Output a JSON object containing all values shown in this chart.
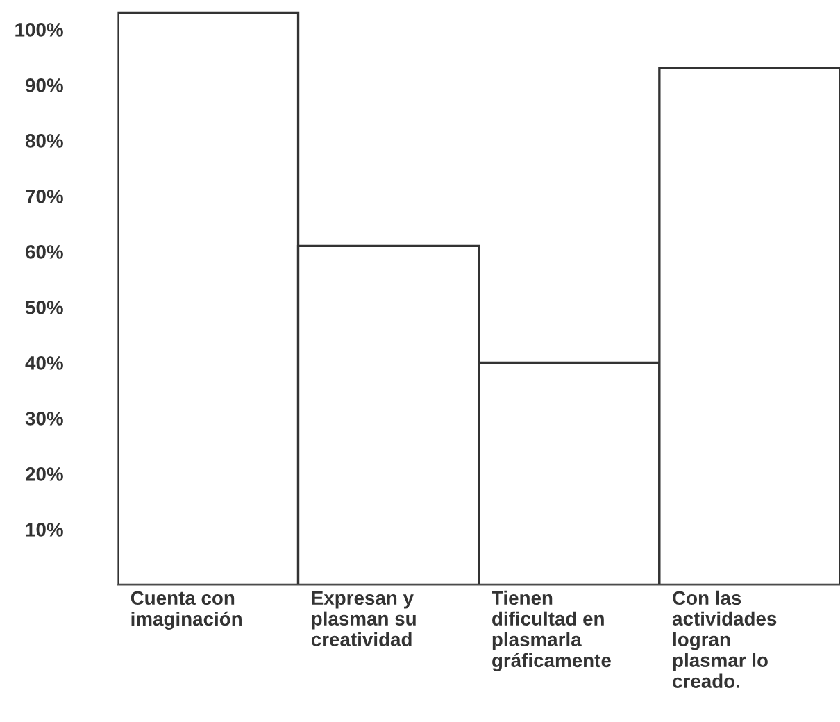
{
  "chart_data": {
    "type": "bar",
    "categories": [
      "Cuenta con\nimaginación",
      "Expresan y\nplasman su\ncreatividad",
      "Tienen\ndificultad en\nplasmarla\ngráficamente",
      "Con las\nactividades\nlogran\nplasmar lo\ncreado."
    ],
    "values": [
      103,
      61,
      40,
      93
    ],
    "color": "#ffffff",
    "ylim": [
      0,
      104
    ],
    "yticks": [
      {
        "value": 10,
        "label": "10%"
      },
      {
        "value": 20,
        "label": "20%"
      },
      {
        "value": 30,
        "label": "30%"
      },
      {
        "value": 40,
        "label": "40%"
      },
      {
        "value": 50,
        "label": "50%"
      },
      {
        "value": 60,
        "label": "60%"
      },
      {
        "value": 70,
        "label": "70%"
      },
      {
        "value": 80,
        "label": "80%"
      },
      {
        "value": 90,
        "label": "90%"
      },
      {
        "value": 100,
        "label": "100%"
      }
    ],
    "grid": false
  }
}
